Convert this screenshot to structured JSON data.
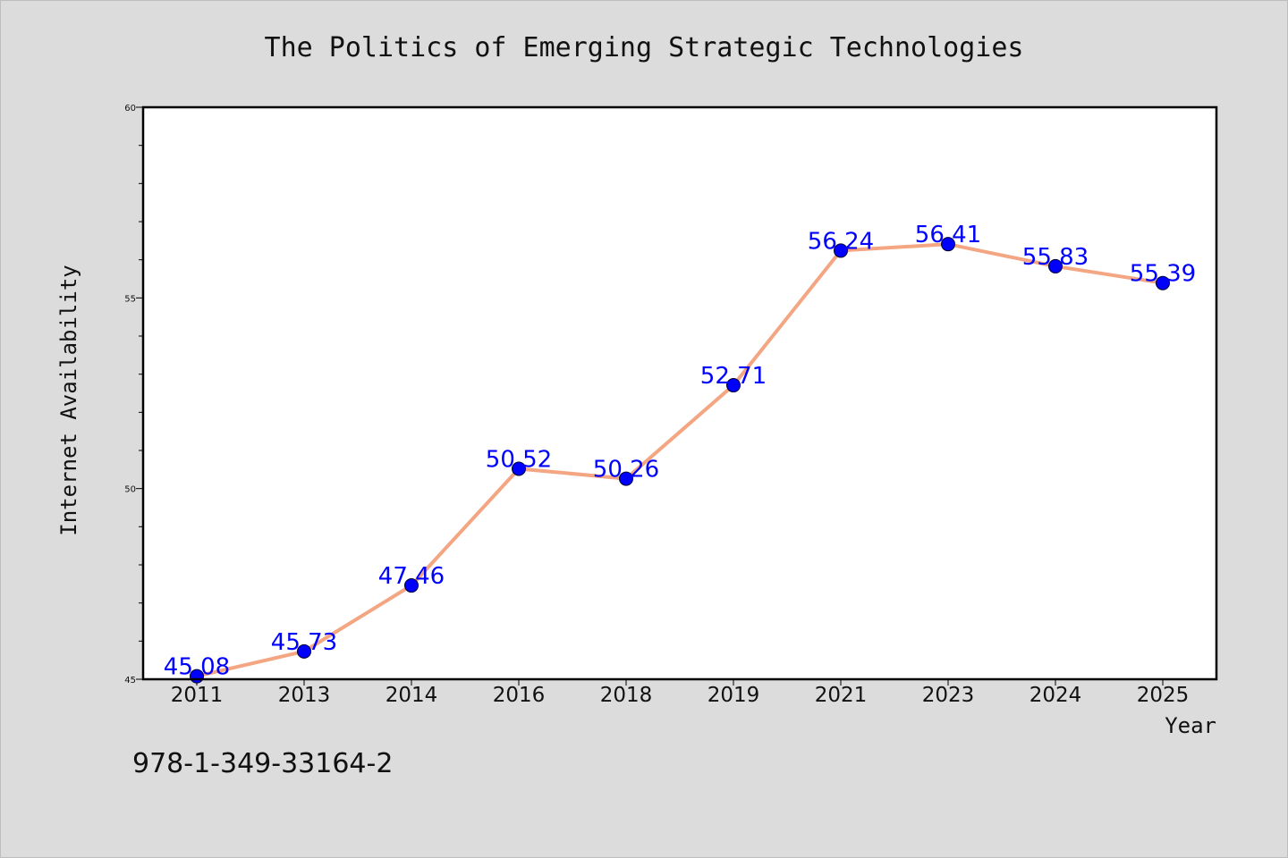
{
  "chart_data": {
    "type": "line",
    "title": "The Politics of Emerging Strategic Technologies",
    "xlabel": "Year",
    "ylabel": "Internet Availability",
    "categories": [
      "2011",
      "2013",
      "2014",
      "2016",
      "2018",
      "2019",
      "2021",
      "2023",
      "2024",
      "2025"
    ],
    "values": [
      45.08,
      45.73,
      47.46,
      50.52,
      50.26,
      52.71,
      56.24,
      56.41,
      55.83,
      55.39
    ],
    "data_labels": [
      "45.08",
      "45.73",
      "47.46",
      "50.52",
      "50.26",
      "52.71",
      "56.24",
      "56.41",
      "55.83",
      "55.39"
    ],
    "ylim": [
      45,
      60
    ],
    "y_ticks": [
      45,
      50,
      55,
      60
    ],
    "y_minor_step": 1,
    "grid": false,
    "line_color": "#f4a582",
    "marker_color": "#0000ff",
    "label_color": "#0000ff"
  },
  "footer": {
    "isbn": "978-1-349-33164-2"
  }
}
